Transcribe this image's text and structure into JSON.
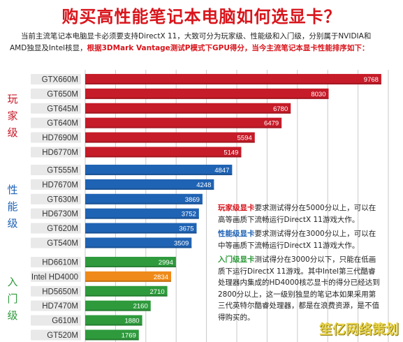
{
  "title": "购买高性能笔记本电脑如何选显卡？",
  "intro": {
    "line1": "当前主流笔记本电脑显卡必须要支持DirectX 11，大致可分为玩家级、性能级和入门级，分别属于NVIDIA和",
    "line2_plain": "AMD独显及Intel核显，",
    "line2_red": "根据3DMark Vantage测试P模式下GPU得分，当今主流笔记本显卡性能排序如下："
  },
  "chart_data": {
    "type": "bar",
    "orientation": "horizontal",
    "title": "",
    "xlabel": "",
    "ylabel": "",
    "xlim": [
      0,
      10000
    ],
    "grid": true,
    "groups": [
      {
        "label": "玩家级",
        "color": "#c61b28",
        "items": [
          {
            "category": "GTX660M",
            "value": 9768
          },
          {
            "category": "GT650M",
            "value": 8030
          },
          {
            "category": "GT645M",
            "value": 6780
          },
          {
            "category": "GT640M",
            "value": 6479
          },
          {
            "category": "HD7690M",
            "value": 5594
          },
          {
            "category": "HD6770M",
            "value": 5149
          }
        ]
      },
      {
        "label": "性能级",
        "color": "#1f63b4",
        "items": [
          {
            "category": "GT555M",
            "value": 4847
          },
          {
            "category": "HD7670M",
            "value": 4248
          },
          {
            "category": "GT630M",
            "value": 3869
          },
          {
            "category": "HD6730M",
            "value": 3752
          },
          {
            "category": "GT620M",
            "value": 3675
          },
          {
            "category": "GT540M",
            "value": 3509
          }
        ]
      },
      {
        "label": "入门级",
        "color": "#2e9a3c",
        "items": [
          {
            "category": "HD6610M",
            "value": 2994
          },
          {
            "category": "Intel HD4000",
            "value": 2834,
            "color": "#ef8a1a"
          },
          {
            "category": "HD5650M",
            "value": 2710
          },
          {
            "category": "HD7470M",
            "value": 2160
          },
          {
            "category": "G610M",
            "value": 1880
          },
          {
            "category": "GT520M",
            "value": 1769
          }
        ]
      }
    ]
  },
  "annotations": [
    {
      "title": "玩家级显卡",
      "color": "#d8151c",
      "text": "要求测试得分在5000分以上，可以在高等画质下流畅运行DirectX 11游戏大作。"
    },
    {
      "title": "性能级显卡",
      "color": "#1f63b4",
      "text": "要求测试得分在3000分以上，可以在中等画质下流畅运行DirectX 11游戏大作。"
    },
    {
      "title": "入门级显卡",
      "color": "#2e9a3c",
      "text": "测试得分在3000分以下，只能在低画质下运行DirectX 11游戏。其中Intel第三代酷睿处理器内集成的HD4000核芯显卡的得分已经达到2800分以上，这一级别独显的笔记本如果采用第三代英特尔酷睿处理器，都是在浪费资源，是不值得购买的。"
    }
  ],
  "watermark": "笙亿网络策划",
  "colors": {
    "title": "#d8151c",
    "grid": "#c9c9c9",
    "label_bg": "#e9e9e9"
  }
}
